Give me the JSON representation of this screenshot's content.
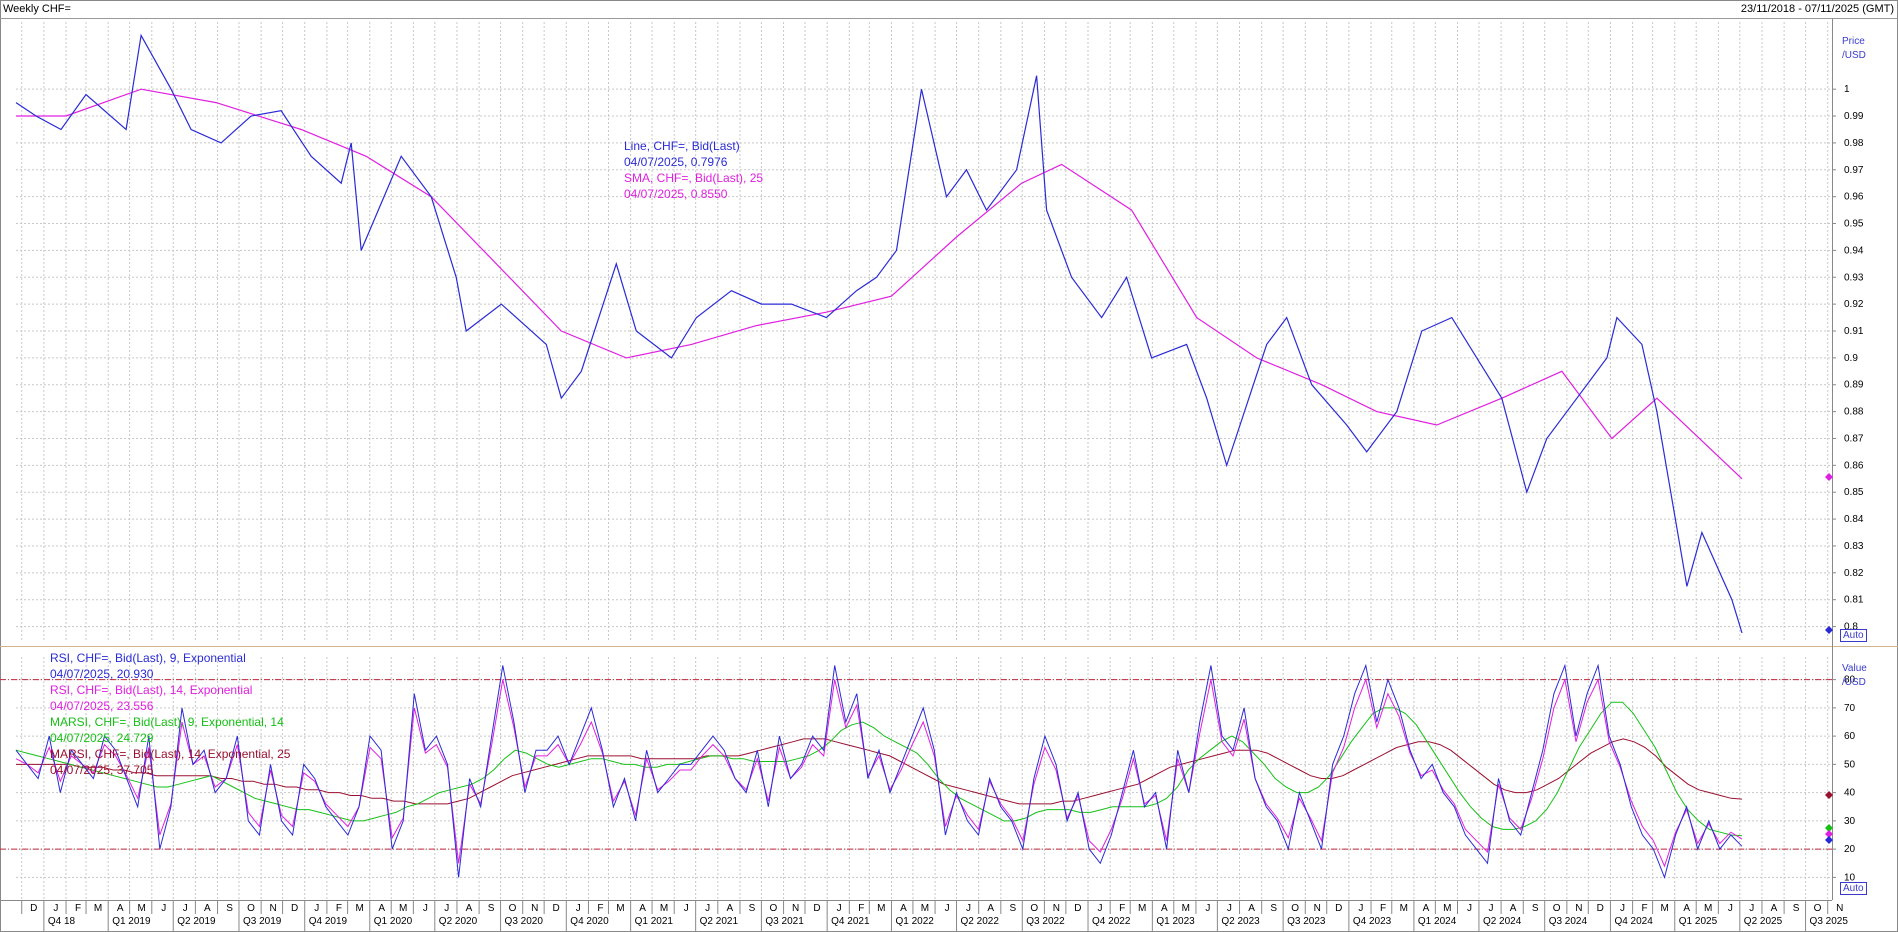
{
  "header": {
    "title": "Weekly CHF=",
    "range": "23/11/2018 - 07/11/2025 (GMT)"
  },
  "price_panel": {
    "axis_title": [
      "Price",
      "/USD"
    ],
    "auto_label": "Auto",
    "legend": [
      {
        "text": "Line, CHF=, Bid(Last)",
        "color": "#2b2bd6"
      },
      {
        "text": "04/07/2025, 0.7976",
        "color": "#2b2bd6"
      },
      {
        "text": "SMA, CHF=, Bid(Last), 25",
        "color": "#e020e0"
      },
      {
        "text": "04/07/2025, 0.8550",
        "color": "#e020e0"
      }
    ]
  },
  "osc_panel": {
    "axis_title": [
      "Value",
      "/USD"
    ],
    "auto_label": "Auto",
    "legend": [
      {
        "text": "RSI, CHF=, Bid(Last), 9, Exponential",
        "color": "#2b2bd6"
      },
      {
        "text": "04/07/2025, 20.930",
        "color": "#2b2bd6"
      },
      {
        "text": "RSI, CHF=, Bid(Last), 14, Exponential",
        "color": "#e020e0"
      },
      {
        "text": "04/07/2025, 23.556",
        "color": "#e020e0"
      },
      {
        "text": "MARSI, CHF=, Bid(Last), 9, Exponential, 14",
        "color": "#16c016"
      },
      {
        "text": "04/07/2025, 24.729",
        "color": "#16c016"
      },
      {
        "text": "MARSI, CHF=, Bid(Last), 14, Exponential, 25",
        "color": "#9a1030"
      },
      {
        "text": "04/07/2025, 37.705",
        "color": "#9a1030"
      }
    ]
  },
  "chart_data": [
    {
      "type": "line",
      "title": "Weekly CHF=",
      "ylabel": "Price /USD",
      "ylim": [
        0.795,
        1.025
      ],
      "y_ticks": [
        0.8,
        0.81,
        0.82,
        0.83,
        0.84,
        0.85,
        0.86,
        0.87,
        0.88,
        0.89,
        0.9,
        0.91,
        0.92,
        0.93,
        0.94,
        0.95,
        0.96,
        0.97,
        0.98,
        0.99,
        1
      ],
      "x_range": [
        "2018-11-23",
        "2025-11-07"
      ],
      "grid": true,
      "series": [
        {
          "name": "Line, CHF=, Bid(Last)",
          "color": "#2b2bd6",
          "x": [
            "2018-11-23",
            "2018-12-21",
            "2019-01-25",
            "2019-03-01",
            "2019-04-26",
            "2019-05-17",
            "2019-06-28",
            "2019-07-26",
            "2019-09-06",
            "2019-10-18",
            "2019-11-29",
            "2020-01-10",
            "2020-02-21",
            "2020-03-06",
            "2020-03-20",
            "2020-05-15",
            "2020-06-26",
            "2020-07-31",
            "2020-08-14",
            "2020-10-02",
            "2020-12-04",
            "2020-12-25",
            "2021-01-22",
            "2021-03-12",
            "2021-04-09",
            "2021-05-28",
            "2021-07-02",
            "2021-08-20",
            "2021-10-01",
            "2021-11-12",
            "2021-12-31",
            "2022-02-11",
            "2022-03-11",
            "2022-04-08",
            "2022-05-13",
            "2022-06-17",
            "2022-07-15",
            "2022-08-12",
            "2022-09-23",
            "2022-10-21",
            "2022-11-04",
            "2022-12-09",
            "2023-01-20",
            "2023-02-24",
            "2023-03-31",
            "2023-05-19",
            "2023-06-16",
            "2023-07-14",
            "2023-09-08",
            "2023-10-06",
            "2023-11-10",
            "2023-12-29",
            "2024-01-26",
            "2024-03-08",
            "2024-04-12",
            "2024-05-24",
            "2024-06-28",
            "2024-08-02",
            "2024-09-06",
            "2024-10-04",
            "2024-11-15",
            "2024-12-27",
            "2025-01-10",
            "2025-02-14",
            "2025-03-07",
            "2025-04-18",
            "2025-05-09",
            "2025-06-20",
            "2025-07-04"
          ],
          "values": [
            0.995,
            0.99,
            0.985,
            0.998,
            0.985,
            1.02,
            1.0,
            0.985,
            0.98,
            0.99,
            0.992,
            0.975,
            0.965,
            0.98,
            0.94,
            0.975,
            0.96,
            0.93,
            0.91,
            0.92,
            0.905,
            0.885,
            0.895,
            0.935,
            0.91,
            0.9,
            0.915,
            0.925,
            0.92,
            0.92,
            0.915,
            0.925,
            0.93,
            0.94,
            1.0,
            0.96,
            0.97,
            0.955,
            0.97,
            1.005,
            0.955,
            0.93,
            0.915,
            0.93,
            0.9,
            0.905,
            0.885,
            0.86,
            0.905,
            0.915,
            0.89,
            0.875,
            0.865,
            0.88,
            0.91,
            0.915,
            0.9,
            0.885,
            0.85,
            0.87,
            0.885,
            0.9,
            0.915,
            0.905,
            0.88,
            0.815,
            0.835,
            0.81,
            0.7976
          ]
        },
        {
          "name": "SMA, CHF=, Bid(Last), 25",
          "color": "#e020e0",
          "x": [
            "2018-11-23",
            "2019-02-01",
            "2019-05-17",
            "2019-08-30",
            "2019-12-27",
            "2020-03-27",
            "2020-06-26",
            "2020-09-25",
            "2020-12-25",
            "2021-03-26",
            "2021-06-25",
            "2021-09-24",
            "2021-12-31",
            "2022-04-01",
            "2022-07-01",
            "2022-09-30",
            "2022-11-25",
            "2023-03-03",
            "2023-06-02",
            "2023-08-25",
            "2023-11-24",
            "2024-02-09",
            "2024-05-03",
            "2024-08-02",
            "2024-10-25",
            "2025-01-03",
            "2025-03-07",
            "2025-07-04"
          ],
          "values": [
            0.99,
            0.99,
            1.0,
            0.995,
            0.985,
            0.975,
            0.96,
            0.935,
            0.91,
            0.9,
            0.905,
            0.912,
            0.917,
            0.923,
            0.945,
            0.965,
            0.972,
            0.955,
            0.915,
            0.9,
            0.89,
            0.88,
            0.875,
            0.885,
            0.895,
            0.87,
            0.885,
            0.855
          ]
        }
      ]
    },
    {
      "type": "line",
      "ylabel": "Value /USD",
      "ylim": [
        2,
        88
      ],
      "y_ticks": [
        10,
        20,
        30,
        40,
        50,
        60,
        70,
        80
      ],
      "reference_lines": [
        20,
        80
      ],
      "x_range": [
        "2018-11-23",
        "2025-11-07"
      ],
      "x_tick_labels": [
        "D",
        "Q4 18",
        "J",
        "F",
        "M",
        "A",
        "M",
        "J",
        "J",
        "A",
        "S",
        "O",
        "N",
        "D",
        "Q1 2019",
        "Q2 2019",
        "Q3 2019",
        "Q4 2019",
        "Q1 2020",
        "Q2 2020",
        "Q3 2020",
        "Q4 2020",
        "Q1 2021",
        "Q2 2021",
        "Q3 2021",
        "Q4 2021",
        "Q1 2022",
        "Q2 2022",
        "Q3 2022",
        "Q4 2022",
        "Q1 2023",
        "Q2 2023",
        "Q3 2023",
        "Q4 2023",
        "Q1 2024",
        "Q2 2024",
        "Q3 2024",
        "Q4 2024",
        "Q1 2025",
        "Q2 2025",
        "Q3 2025"
      ],
      "grid": true,
      "series": [
        {
          "name": "RSI, CHF=, Bid(Last), 9, Exponential",
          "color": "#2b2bd6",
          "values": [
            55,
            50,
            45,
            60,
            40,
            55,
            50,
            45,
            60,
            55,
            45,
            35,
            60,
            20,
            35,
            70,
            50,
            55,
            40,
            45,
            60,
            30,
            25,
            50,
            30,
            25,
            50,
            45,
            35,
            30,
            25,
            35,
            60,
            55,
            20,
            30,
            75,
            55,
            60,
            50,
            10,
            45,
            35,
            60,
            85,
            65,
            40,
            55,
            55,
            60,
            50,
            60,
            70,
            55,
            35,
            45,
            30,
            55,
            40,
            45,
            50,
            50,
            55,
            60,
            55,
            45,
            40,
            55,
            35,
            60,
            45,
            50,
            60,
            55,
            85,
            65,
            75,
            45,
            55,
            40,
            50,
            60,
            70,
            55,
            25,
            40,
            30,
            25,
            45,
            35,
            30,
            20,
            45,
            60,
            50,
            30,
            40,
            20,
            15,
            25,
            40,
            55,
            35,
            40,
            20,
            55,
            40,
            65,
            85,
            60,
            55,
            70,
            45,
            35,
            30,
            20,
            40,
            30,
            20,
            50,
            60,
            75,
            85,
            65,
            80,
            70,
            55,
            45,
            50,
            40,
            35,
            25,
            20,
            15,
            45,
            30,
            25,
            40,
            55,
            75,
            85,
            60,
            75,
            85,
            60,
            50,
            35,
            25,
            20,
            10,
            25,
            35,
            20,
            30,
            20,
            25,
            21
          ]
        },
        {
          "name": "RSI, CHF=, Bid(Last), 14, Exponential",
          "color": "#e020e0",
          "values": [
            52,
            50,
            47,
            56,
            44,
            53,
            50,
            47,
            57,
            53,
            46,
            38,
            56,
            25,
            36,
            65,
            50,
            53,
            42,
            45,
            57,
            33,
            28,
            48,
            32,
            28,
            47,
            44,
            36,
            32,
            28,
            35,
            56,
            52,
            24,
            31,
            70,
            54,
            57,
            49,
            15,
            43,
            36,
            57,
            80,
            63,
            42,
            53,
            53,
            57,
            50,
            57,
            65,
            54,
            37,
            44,
            32,
            52,
            41,
            44,
            48,
            48,
            53,
            57,
            53,
            45,
            41,
            52,
            37,
            56,
            45,
            49,
            57,
            53,
            80,
            63,
            71,
            46,
            53,
            41,
            48,
            57,
            65,
            53,
            28,
            39,
            32,
            27,
            44,
            36,
            31,
            23,
            43,
            56,
            48,
            31,
            39,
            23,
            19,
            27,
            38,
            52,
            36,
            39,
            23,
            52,
            40,
            61,
            80,
            58,
            53,
            66,
            45,
            36,
            31,
            24,
            38,
            31,
            23,
            47,
            56,
            70,
            80,
            63,
            75,
            67,
            54,
            46,
            48,
            41,
            36,
            27,
            23,
            19,
            43,
            31,
            27,
            38,
            52,
            70,
            80,
            58,
            72,
            80,
            58,
            49,
            37,
            28,
            23,
            14,
            26,
            34,
            22,
            29,
            22,
            26,
            23.556
          ]
        },
        {
          "name": "MARSI, CHF=, Bid(Last), 9, Exponential, 14",
          "color": "#16c016",
          "values": [
            55,
            54,
            53,
            52,
            51,
            50,
            49,
            48,
            47,
            46,
            45,
            44,
            43,
            42,
            42,
            43,
            44,
            45,
            46,
            44,
            42,
            40,
            38,
            37,
            36,
            35,
            34,
            34,
            33,
            32,
            31,
            30,
            30,
            31,
            32,
            33,
            35,
            36,
            38,
            40,
            41,
            42,
            43,
            45,
            48,
            52,
            55,
            54,
            52,
            50,
            49,
            50,
            51,
            52,
            52,
            51,
            50,
            50,
            49,
            49,
            50,
            50,
            51,
            52,
            53,
            53,
            52,
            52,
            51,
            51,
            51,
            51,
            52,
            53,
            55,
            58,
            62,
            64,
            65,
            63,
            60,
            58,
            56,
            54,
            50,
            45,
            41,
            38,
            36,
            34,
            32,
            30,
            30,
            31,
            33,
            34,
            34,
            34,
            33,
            33,
            34,
            35,
            35,
            35,
            35,
            36,
            38,
            42,
            48,
            52,
            55,
            58,
            60,
            58,
            54,
            50,
            45,
            42,
            40,
            40,
            42,
            46,
            52,
            58,
            63,
            68,
            70,
            70,
            68,
            64,
            58,
            52,
            46,
            40,
            35,
            31,
            28,
            27,
            27,
            28,
            30,
            34,
            40,
            48,
            56,
            62,
            68,
            72,
            72,
            68,
            62,
            56,
            48,
            40,
            34,
            30,
            27,
            26,
            25,
            24.729
          ]
        },
        {
          "name": "MARSI, CHF=, Bid(Last), 14, Exponential, 25",
          "color": "#9a1030",
          "values": [
            50,
            50,
            50,
            50,
            50,
            50,
            49,
            49,
            49,
            48,
            48,
            47,
            47,
            46,
            46,
            46,
            46,
            46,
            46,
            45,
            45,
            44,
            44,
            43,
            43,
            42,
            42,
            41,
            41,
            40,
            40,
            39,
            39,
            38,
            38,
            37,
            37,
            36,
            36,
            36,
            36,
            37,
            38,
            40,
            42,
            44,
            46,
            47,
            48,
            49,
            50,
            51,
            52,
            53,
            53,
            53,
            53,
            53,
            52,
            52,
            52,
            52,
            52,
            52,
            53,
            53,
            53,
            53,
            54,
            55,
            56,
            57,
            58,
            59,
            59,
            59,
            58,
            57,
            56,
            55,
            54,
            53,
            51,
            49,
            47,
            45,
            43,
            42,
            41,
            40,
            39,
            38,
            37,
            36,
            36,
            36,
            36,
            37,
            37,
            38,
            39,
            40,
            41,
            42,
            43,
            45,
            47,
            49,
            50,
            51,
            52,
            53,
            54,
            55,
            55,
            55,
            54,
            52,
            50,
            48,
            46,
            45,
            45,
            46,
            48,
            50,
            52,
            54,
            56,
            57,
            58,
            58,
            57,
            55,
            52,
            49,
            46,
            43,
            41,
            40,
            40,
            41,
            43,
            45,
            48,
            51,
            54,
            56,
            58,
            59,
            58,
            56,
            53,
            49,
            46,
            43,
            41,
            40,
            39,
            38,
            37.705
          ]
        }
      ]
    }
  ]
}
